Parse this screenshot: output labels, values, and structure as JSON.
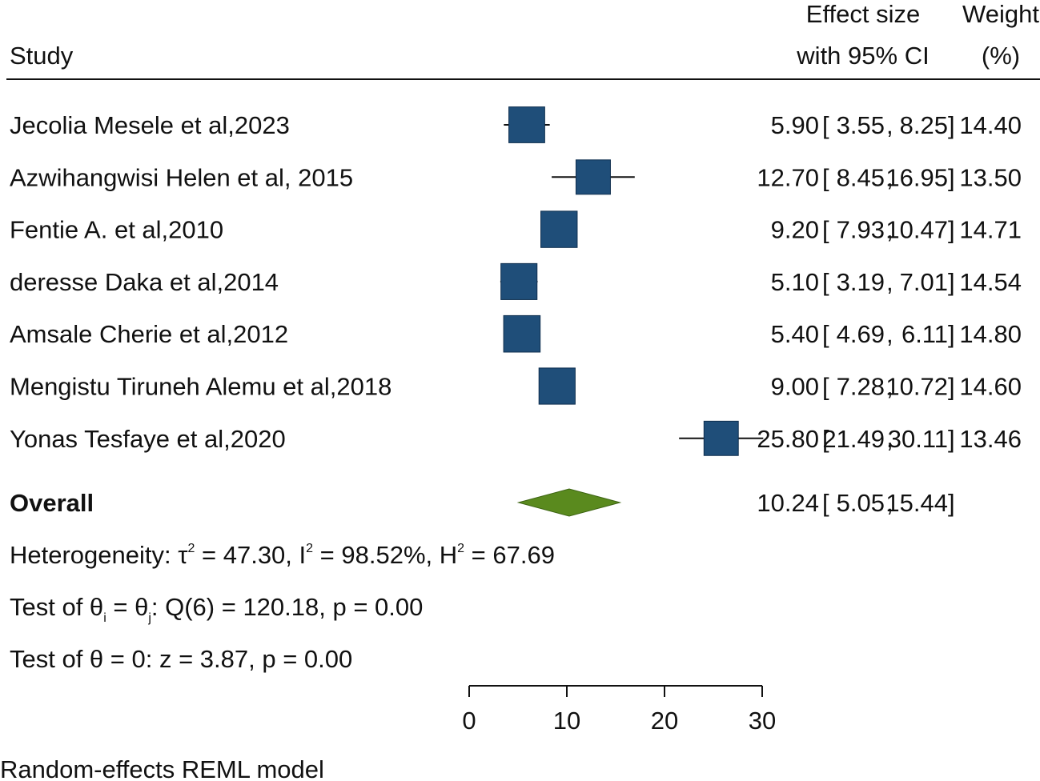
{
  "header": {
    "study_label": "Study",
    "effect_label_line1": "Effect size",
    "effect_label_line2": "with 95% CI",
    "weight_label_line1": "Weight",
    "weight_label_line2": "(%)"
  },
  "colors": {
    "study_marker": "#1f4e79",
    "overall_diamond": "#5a8a1e",
    "text": "#111111"
  },
  "chart_data": {
    "type": "forest",
    "xlim": [
      0,
      30
    ],
    "x_ticks": [
      "0",
      "10",
      "20",
      "30"
    ],
    "studies": [
      {
        "name": "Jecolia Mesele et al,2023",
        "effect": 5.9,
        "lower": 3.55,
        "upper": 8.25,
        "weight": 14.4,
        "effect_text": "5.90",
        "lower_text": "3.55",
        "upper_text": "8.25",
        "weight_text": "14.40"
      },
      {
        "name": "Azwihangwisi Helen et al, 2015",
        "effect": 12.7,
        "lower": 8.45,
        "upper": 16.95,
        "weight": 13.5,
        "effect_text": "12.70",
        "lower_text": "8.45",
        "upper_text": "16.95",
        "weight_text": "13.50"
      },
      {
        "name": "Fentie A. et al,2010",
        "effect": 9.2,
        "lower": 7.93,
        "upper": 10.47,
        "weight": 14.71,
        "effect_text": "9.20",
        "lower_text": "7.93",
        "upper_text": "10.47",
        "weight_text": "14.71"
      },
      {
        "name": "deresse Daka et al,2014",
        "effect": 5.1,
        "lower": 3.19,
        "upper": 7.01,
        "weight": 14.54,
        "effect_text": "5.10",
        "lower_text": "3.19",
        "upper_text": "7.01",
        "weight_text": "14.54"
      },
      {
        "name": "Amsale Cherie et al,2012",
        "effect": 5.4,
        "lower": 4.69,
        "upper": 6.11,
        "weight": 14.8,
        "effect_text": "5.40",
        "lower_text": "4.69",
        "upper_text": "6.11",
        "weight_text": "14.80"
      },
      {
        "name": "Mengistu Tiruneh Alemu et al,2018",
        "effect": 9.0,
        "lower": 7.28,
        "upper": 10.72,
        "weight": 14.6,
        "effect_text": "9.00",
        "lower_text": "7.28",
        "upper_text": "10.72",
        "weight_text": "14.60"
      },
      {
        "name": "Yonas Tesfaye et al,2020",
        "effect": 25.8,
        "lower": 21.49,
        "upper": 30.11,
        "weight": 13.46,
        "effect_text": "25.80",
        "lower_text": "21.49",
        "upper_text": "30.11",
        "weight_text": "13.46"
      }
    ],
    "overall": {
      "label": "Overall",
      "effect": 10.24,
      "lower": 5.05,
      "upper": 15.44,
      "effect_text": "10.24",
      "lower_text": "5.05",
      "upper_text": "15.44"
    },
    "stats": {
      "het_prefix": "Heterogeneity: τ",
      "het_tau_sup": "2",
      "het_tau_val": " = 47.30, I",
      "het_i_sup": "2",
      "het_i_val": " = 98.52%, H",
      "het_h_sup": "2",
      "het_h_val": " = 67.69",
      "test1_a": "Test of θ",
      "test1_sub1": "i",
      "test1_b": " = θ",
      "test1_sub2": "j",
      "test1_c": ": Q(6) = 120.18, p = 0.00",
      "test2": "Test of θ = 0: z = 3.87, p = 0.00"
    },
    "footnote": "Random-effects REML model"
  }
}
